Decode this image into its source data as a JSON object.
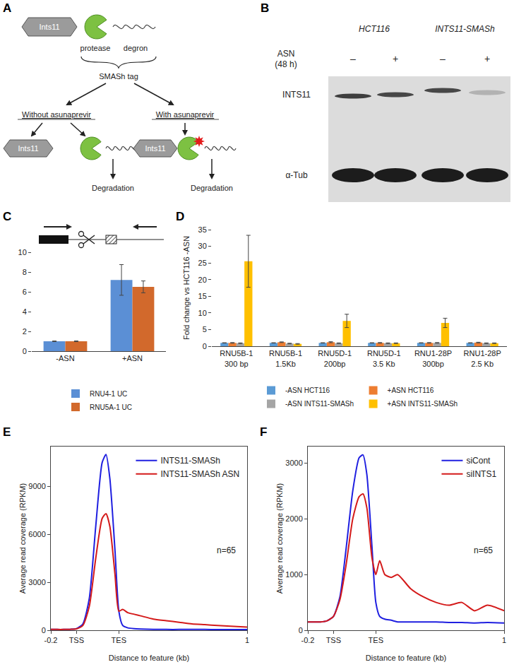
{
  "diagram": {
    "title": "A",
    "protein": "Ints11",
    "protease": "protease",
    "degron": "degron",
    "tag": "SMASh tag",
    "without": "Without asunaprevir",
    "with": "With asunaprevir",
    "degradation": "Degradation"
  },
  "blot": {
    "title": "B",
    "cell_lines": [
      "HCT116",
      "INTS11-SMASh"
    ],
    "treatment": "ASN",
    "duration": "(48 h)",
    "lanes": [
      "–",
      "+",
      "–",
      "+"
    ],
    "rows": [
      "INTS11",
      "α-Tub"
    ]
  },
  "chart_data": [
    {
      "title": "C",
      "type": "bar",
      "categories": [
        "-ASN",
        "+ASN"
      ],
      "series": [
        {
          "name": "RNU4-1 UC",
          "color": "#5b8fd5",
          "values": [
            1,
            7.2
          ],
          "error": [
            0.03,
            1.55
          ]
        },
        {
          "name": "RNU5A-1 UC",
          "color": "#d2692c",
          "values": [
            1,
            6.5
          ],
          "error": [
            0.04,
            0.6
          ]
        }
      ],
      "ylim": [
        0,
        10
      ],
      "yticks": [
        0,
        2,
        4,
        6,
        8,
        10
      ],
      "grid": false,
      "legend": "bottom"
    },
    {
      "title": "D",
      "type": "bar",
      "categories": [
        "RNU5B-1 300 bp",
        "RNU5B-1 1.5Kb",
        "RNU5D-1 200bp",
        "RNU5D-1 3.5 Kb",
        "RNU1-28P 300bp",
        "RNU1-28P 2.5 Kb"
      ],
      "series": [
        {
          "name": "-ASN HCT116",
          "color": "#5b9bd5",
          "values": [
            1,
            1,
            1,
            1,
            1,
            1
          ],
          "error": [
            0.05,
            0.05,
            0.05,
            0.05,
            0.05,
            0.05
          ]
        },
        {
          "name": "+ASN HCT116",
          "color": "#ed7d31",
          "values": [
            1.0,
            1.2,
            1.2,
            1.0,
            1.0,
            1.1
          ],
          "error": [
            0.1,
            0.1,
            0.15,
            0.1,
            0.1,
            0.1
          ]
        },
        {
          "name": "-ASN INTS11-SMASh",
          "color": "#a5a5a5",
          "values": [
            0.9,
            0.8,
            0.9,
            0.9,
            1.0,
            0.9
          ],
          "error": [
            0.1,
            0.1,
            0.1,
            0.1,
            0.1,
            0.1
          ]
        },
        {
          "name": "+ASN INTS11-SMASh",
          "color": "#ffc000",
          "values": [
            25.5,
            0.7,
            7.6,
            0.9,
            7.0,
            0.9
          ],
          "error": [
            7.8,
            0.1,
            2.0,
            0.1,
            1.4,
            0.1
          ]
        }
      ],
      "ylim": [
        0,
        35
      ],
      "yticks": [
        0,
        5,
        10,
        15,
        20,
        25,
        30,
        35
      ],
      "y_label": "Fold change vs HCT116 -ASN",
      "grid": false,
      "legend": "bottom"
    },
    {
      "title": "E",
      "type": "line",
      "x": [
        -0.2,
        -0.15,
        -0.1,
        -0.05,
        0,
        0.05,
        0.1,
        0.15,
        0.2,
        0.23,
        0.26,
        0.3,
        0.33,
        0.36,
        0.4,
        0.45,
        0.5,
        0.6,
        0.7,
        0.8,
        0.9,
        1.0,
        1.1,
        1.2,
        1.33
      ],
      "series": [
        {
          "name": "INTS11-SMASh",
          "color": "#1f1fe0",
          "values": [
            50,
            50,
            50,
            60,
            100,
            400,
            2000,
            6500,
            10500,
            11000,
            9500,
            5000,
            1200,
            300,
            150,
            100,
            80,
            60,
            50,
            50,
            50,
            50,
            40,
            40,
            40
          ]
        },
        {
          "name": "INTS11-SMASh ASN",
          "color": "#d41a1a",
          "values": [
            50,
            50,
            50,
            60,
            90,
            300,
            1500,
            4500,
            7000,
            7300,
            6500,
            3500,
            1200,
            1300,
            1100,
            1000,
            900,
            700,
            600,
            500,
            400,
            350,
            300,
            250,
            200
          ]
        }
      ],
      "xlim": [
        -0.2,
        1.33
      ],
      "xticks": [
        -0.2,
        {
          "value": 0,
          "label": "TSS"
        },
        {
          "value": 0.33,
          "label": "TES"
        },
        {
          "value": 1.33,
          "label": "1"
        }
      ],
      "ylim": [
        0,
        11500
      ],
      "yticks": [
        0,
        3000,
        6000,
        9000
      ],
      "x_label": "Distance to feature (kb)",
      "y_label": "Average read coverage (RPKM)",
      "annotations": [
        "n=65"
      ],
      "legend": "top right",
      "grid": false
    },
    {
      "title": "F",
      "type": "line",
      "x": [
        -0.2,
        -0.15,
        -0.1,
        -0.05,
        0,
        0.05,
        0.1,
        0.15,
        0.2,
        0.23,
        0.26,
        0.3,
        0.33,
        0.36,
        0.4,
        0.45,
        0.5,
        0.6,
        0.7,
        0.8,
        0.9,
        1.0,
        1.1,
        1.2,
        1.33
      ],
      "series": [
        {
          "name": "siCont",
          "color": "#1f1fe0",
          "values": [
            150,
            150,
            150,
            170,
            250,
            600,
            1500,
            2500,
            3100,
            3150,
            2800,
            1500,
            500,
            250,
            200,
            180,
            150,
            150,
            150,
            150,
            140,
            140,
            130,
            140,
            130
          ]
        },
        {
          "name": "siINTS1",
          "color": "#d41a1a",
          "values": [
            150,
            150,
            150,
            170,
            250,
            550,
            1200,
            2000,
            2400,
            2450,
            2200,
            1300,
            1000,
            1250,
            1000,
            950,
            1000,
            750,
            600,
            500,
            450,
            500,
            350,
            450,
            350
          ]
        }
      ],
      "xlim": [
        -0.2,
        1.33
      ],
      "xticks": [
        -0.2,
        {
          "value": 0,
          "label": "TSS"
        },
        {
          "value": 0.33,
          "label": "TES"
        },
        {
          "value": 1.33,
          "label": "1"
        }
      ],
      "ylim": [
        0,
        3300
      ],
      "yticks": [
        0,
        1000,
        2000,
        3000
      ],
      "x_label": "Distance to feature (kb)",
      "y_label": "Average read coverage (RPKM)",
      "annotations": [
        "n=65"
      ],
      "legend": "top right",
      "grid": false
    }
  ]
}
